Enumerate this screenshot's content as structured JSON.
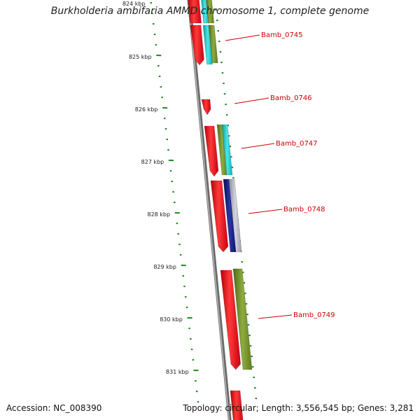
{
  "title": "Burkholderia ambifaria AMMD chromosome 1, complete genome",
  "footer": {
    "accession": "Accession: NC_008390",
    "topology": "Topology: circular; Length: 3,556,545 bp; Genes: 3,281"
  },
  "scale_labels": [
    "824 kbp",
    "825 kbp",
    "826 kbp",
    "827 kbp",
    "828 kbp",
    "829 kbp",
    "830 kbp",
    "831 kbp"
  ],
  "gene_labels": [
    "Bamb_0745",
    "Bamb_0746",
    "Bamb_0747",
    "Bamb_0748",
    "Bamb_0749"
  ],
  "colors": {
    "backbone": "#8c8c8c",
    "tick": "#1a8a1a",
    "gene_red": "#e8101a",
    "cyan": "#19c4c4",
    "olive": "#6e8c2a",
    "navy": "#0f1a80",
    "gray": "#a8a8b8",
    "label": "#cc0000"
  }
}
